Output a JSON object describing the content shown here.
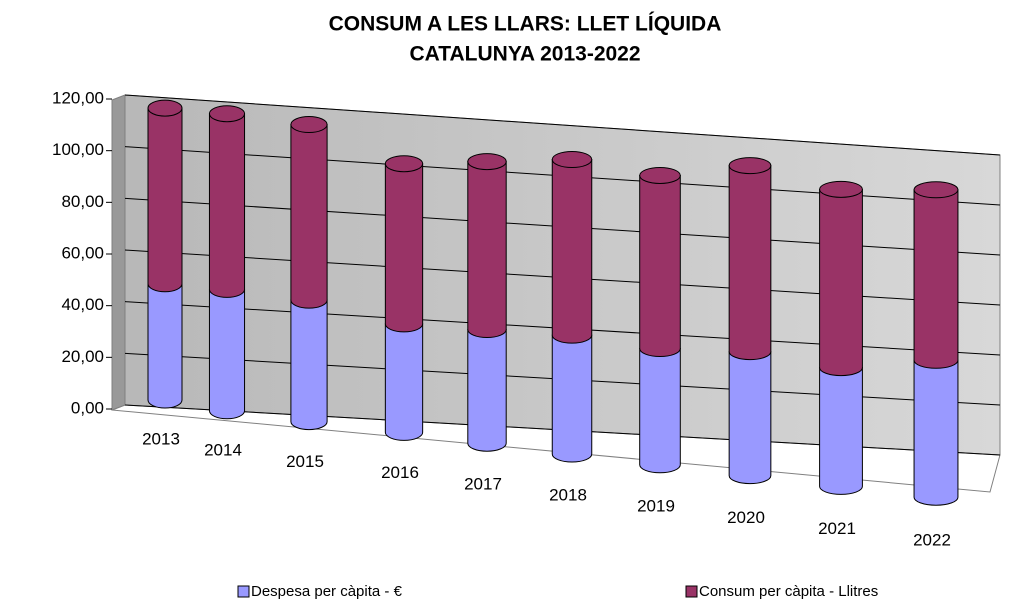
{
  "chart_data": {
    "type": "bar3d-stacked",
    "title_lines": [
      "CONSUM A LES LLARS:    LLET LÍQUIDA",
      "CATALUNYA 2013-2022"
    ],
    "categories": [
      "2013",
      "2014",
      "2015",
      "2016",
      "2017",
      "2018",
      "2019",
      "2020",
      "2021",
      "2022"
    ],
    "series": [
      {
        "name": "Despesa per càpita  - €",
        "color": "#9999ff",
        "values": [
          45,
          47,
          47,
          42,
          44,
          46,
          45,
          48,
          46,
          53
        ]
      },
      {
        "name": "Consum per càpita - Llitres",
        "color": "#993366",
        "values": [
          68,
          68,
          68,
          62,
          65,
          68,
          67,
          72,
          69,
          66
        ]
      }
    ],
    "ylim": [
      0,
      120
    ],
    "yticks": [
      {
        "value": 0,
        "label": "0,00"
      },
      {
        "value": 20,
        "label": "20,00"
      },
      {
        "value": 40,
        "label": "40,00"
      },
      {
        "value": 60,
        "label": "60,00"
      },
      {
        "value": 80,
        "label": "80,00"
      },
      {
        "value": 100,
        "label": "100,00"
      },
      {
        "value": 120,
        "label": "120,00"
      }
    ],
    "grid": true,
    "legend": "bottom"
  }
}
